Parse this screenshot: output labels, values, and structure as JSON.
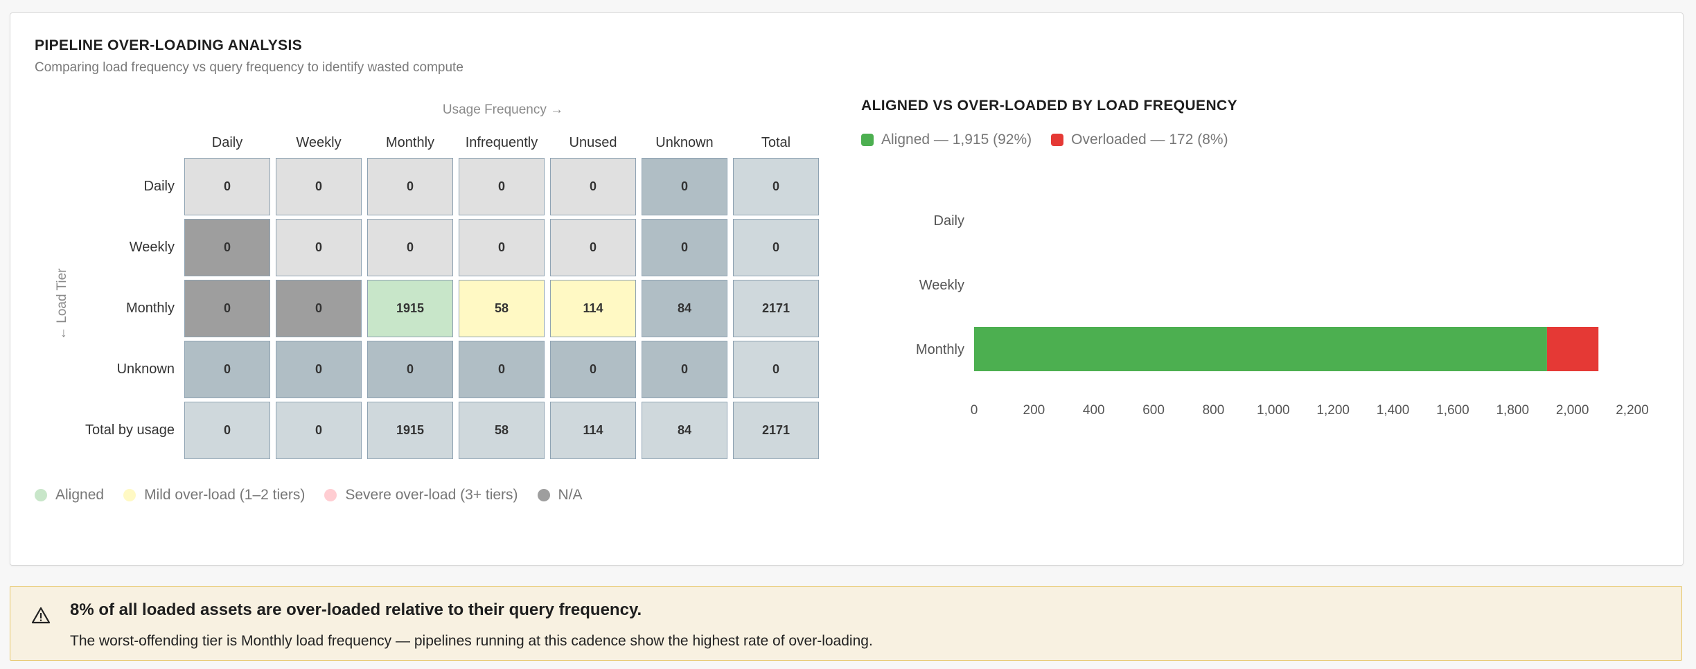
{
  "panel": {
    "title": "PIPELINE OVER-LOADING ANALYSIS",
    "subtitle": "Comparing load frequency vs query frequency to identify wasted compute"
  },
  "matrix": {
    "usage_axis_label": "Usage Frequency →",
    "load_axis_label": "← Load Tier",
    "columns": [
      "Daily",
      "Weekly",
      "Monthly",
      "Infrequently",
      "Unused",
      "Unknown",
      "Total"
    ],
    "rows": [
      {
        "label": "Daily",
        "cells": [
          "0",
          "0",
          "0",
          "0",
          "0",
          "0",
          "0"
        ],
        "styles": [
          "gray",
          "gray",
          "gray",
          "gray",
          "gray",
          "unk",
          "total"
        ]
      },
      {
        "label": "Weekly",
        "cells": [
          "0",
          "0",
          "0",
          "0",
          "0",
          "0",
          "0"
        ],
        "styles": [
          "dark",
          "gray",
          "gray",
          "gray",
          "gray",
          "unk",
          "total"
        ]
      },
      {
        "label": "Monthly",
        "cells": [
          "0",
          "0",
          "1915",
          "58",
          "114",
          "84",
          "2171"
        ],
        "styles": [
          "dark",
          "dark",
          "green",
          "yellow",
          "yellow",
          "unk",
          "total"
        ]
      },
      {
        "label": "Unknown",
        "cells": [
          "0",
          "0",
          "0",
          "0",
          "0",
          "0",
          "0"
        ],
        "styles": [
          "unk",
          "unk",
          "unk",
          "unk",
          "unk",
          "unk",
          "total"
        ]
      },
      {
        "label": "Total by usage",
        "cells": [
          "0",
          "0",
          "1915",
          "58",
          "114",
          "84",
          "2171"
        ],
        "styles": [
          "total",
          "total",
          "total",
          "total",
          "total",
          "total",
          "total"
        ]
      }
    ],
    "style_colors": {
      "gray": "#e0e0e0",
      "dark": "#9e9e9e",
      "unk": "#b0bec5",
      "total": "#cfd8dc",
      "green": "#c8e6c9",
      "yellow": "#fff9c4"
    },
    "legend": [
      {
        "label": "Aligned",
        "color": "#c8e6c9"
      },
      {
        "label": "Mild over-load (1–2 tiers)",
        "color": "#fff9c4"
      },
      {
        "label": "Severe over-load (3+ tiers)",
        "color": "#ffcdd2"
      },
      {
        "label": "N/A",
        "color": "#9e9e9e"
      }
    ]
  },
  "chart_data": {
    "type": "bar",
    "orientation": "horizontal",
    "stacked": true,
    "title": "ALIGNED VS OVER-LOADED BY LOAD FREQUENCY",
    "categories": [
      "Daily",
      "Weekly",
      "Monthly"
    ],
    "series": [
      {
        "name": "Aligned — 1,915 (92%)",
        "color": "#4caf50",
        "values": [
          0,
          0,
          1915
        ]
      },
      {
        "name": "Overloaded — 172 (8%)",
        "color": "#e53935",
        "values": [
          0,
          0,
          172
        ]
      }
    ],
    "xlim": [
      0,
      2200
    ],
    "xticks": [
      0,
      200,
      400,
      600,
      800,
      1000,
      1200,
      1400,
      1600,
      1800,
      2000,
      2200
    ],
    "xtick_labels": [
      "0",
      "200",
      "400",
      "600",
      "800",
      "1,000",
      "1,200",
      "1,400",
      "1,600",
      "1,800",
      "2,000",
      "2,200"
    ],
    "grid": false,
    "legend_position": "top-left"
  },
  "alert": {
    "icon": "warning-icon",
    "headline": "8% of all loaded assets are over-loaded relative to their query frequency.",
    "body": "The worst-offending tier is Monthly load frequency — pipelines running at this cadence show the highest rate of over-loading."
  }
}
